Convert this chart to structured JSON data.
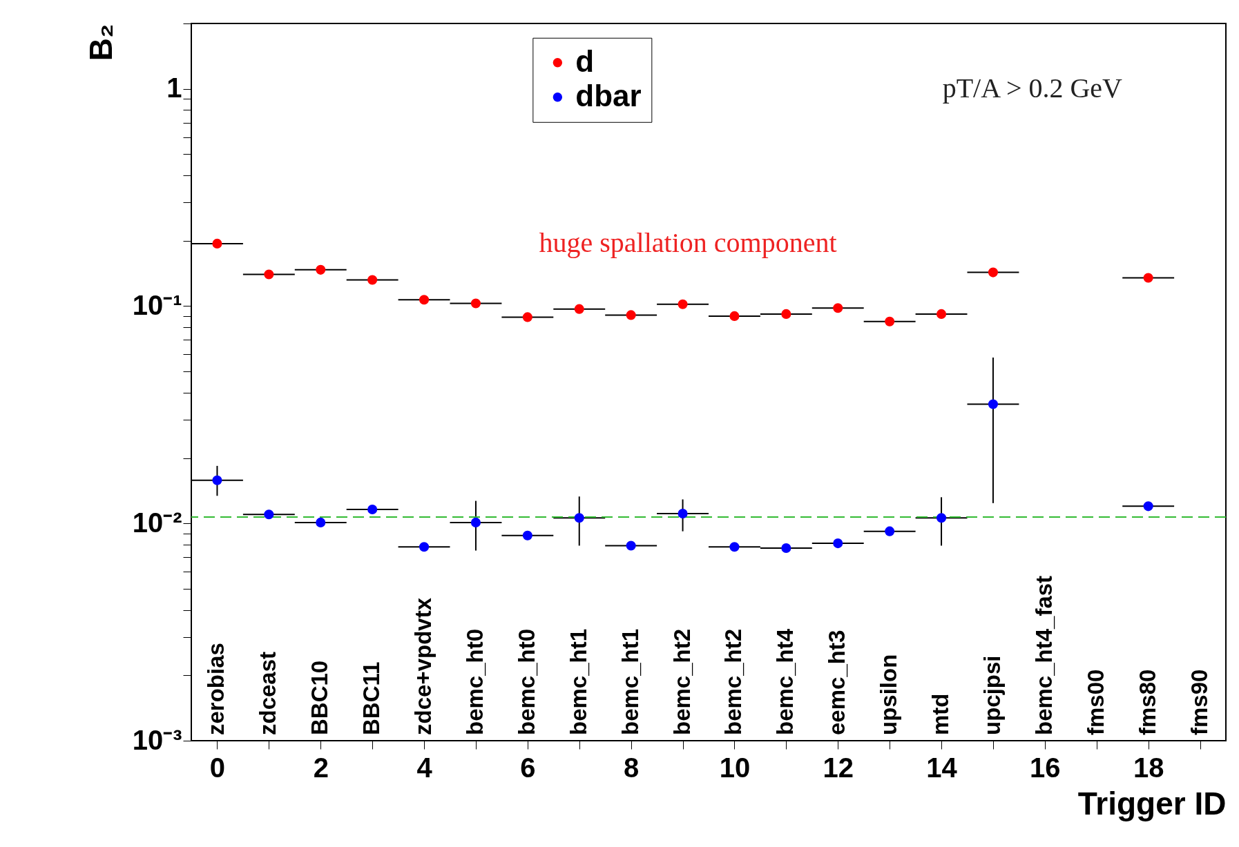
{
  "chart_data": {
    "type": "scatter",
    "xlabel": "Trigger ID",
    "ylabel": "B₂",
    "x": [
      0,
      1,
      2,
      3,
      4,
      5,
      6,
      7,
      8,
      9,
      10,
      11,
      12,
      13,
      14,
      15,
      16,
      17,
      18
    ],
    "series": [
      {
        "name": "d",
        "color": "#ff0000",
        "values": [
          0.194,
          0.14,
          0.147,
          0.132,
          0.107,
          0.103,
          0.089,
          0.097,
          0.091,
          0.102,
          0.09,
          0.092,
          0.098,
          0.085,
          0.092,
          0.143,
          null,
          null,
          0.135
        ],
        "xerrors": [
          0.5,
          0.5,
          0.5,
          0.5,
          0.5,
          0.5,
          0.5,
          0.5,
          0.5,
          0.5,
          0.5,
          0.5,
          0.5,
          0.5,
          0.5,
          0.5,
          null,
          null,
          0.5
        ]
      },
      {
        "name": "dbar",
        "color": "#0000ff",
        "values": [
          0.0158,
          0.011,
          0.0101,
          0.0116,
          0.0078,
          0.0101,
          0.0088,
          0.0106,
          0.0079,
          0.0111,
          0.0078,
          0.0077,
          0.0081,
          0.0092,
          0.0106,
          0.0354,
          null,
          null,
          0.012
        ],
        "errors": [
          [
            0.0134,
            0.0184
          ],
          null,
          null,
          null,
          null,
          [
            0.0075,
            0.0127
          ],
          null,
          [
            0.0079,
            0.0133
          ],
          null,
          [
            0.0092,
            0.0129
          ],
          null,
          null,
          null,
          null,
          [
            0.0079,
            0.0132
          ],
          [
            0.0124,
            0.058
          ],
          null,
          null,
          null
        ],
        "xerrors": [
          0.5,
          0.5,
          0.5,
          0.5,
          0.5,
          0.5,
          0.5,
          0.5,
          0.5,
          0.5,
          0.5,
          0.5,
          0.5,
          0.5,
          0.5,
          0.5,
          null,
          null,
          0.5
        ]
      }
    ],
    "log": true,
    "xlim": [
      -0.5,
      19.5
    ],
    "xticks": [
      0,
      {
        "value": 1,
        "label": null
      },
      2,
      {
        "value": 3,
        "label": null
      },
      4,
      {
        "value": 5,
        "label": null
      },
      6,
      {
        "value": 7,
        "label": null
      },
      8,
      {
        "value": 9,
        "label": null
      },
      10,
      {
        "value": 11,
        "label": null
      },
      12,
      {
        "value": 13,
        "label": null
      },
      14,
      {
        "value": 15,
        "label": null
      },
      16,
      {
        "value": 17,
        "label": null
      },
      18,
      {
        "value": 19,
        "label": null
      }
    ],
    "ylim": [
      0.001,
      2
    ],
    "yticks": [
      {
        "value": 0.001,
        "label": "10⁻³"
      },
      {
        "value": 0.002,
        "label": null
      },
      {
        "value": 0.003,
        "label": null
      },
      {
        "value": 0.004,
        "label": null
      },
      {
        "value": 0.005,
        "label": null
      },
      {
        "value": 0.006,
        "label": null
      },
      {
        "value": 0.007,
        "label": null
      },
      {
        "value": 0.008,
        "label": null
      },
      {
        "value": 0.009,
        "label": null
      },
      {
        "value": 0.01,
        "label": "10⁻²"
      },
      {
        "value": 0.02,
        "label": null
      },
      {
        "value": 0.03,
        "label": null
      },
      {
        "value": 0.04,
        "label": null
      },
      {
        "value": 0.05,
        "label": null
      },
      {
        "value": 0.06,
        "label": null
      },
      {
        "value": 0.07,
        "label": null
      },
      {
        "value": 0.08,
        "label": null
      },
      {
        "value": 0.09,
        "label": null
      },
      {
        "value": 0.1,
        "label": "10⁻¹"
      },
      {
        "value": 0.2,
        "label": null
      },
      {
        "value": 0.3,
        "label": null
      },
      {
        "value": 0.4,
        "label": null
      },
      {
        "value": 0.5,
        "label": null
      },
      {
        "value": 0.6,
        "label": null
      },
      {
        "value": 0.7,
        "label": null
      },
      {
        "value": 0.8,
        "label": null
      },
      {
        "value": 0.9,
        "label": null
      },
      1,
      {
        "value": 2,
        "label": null
      }
    ],
    "ref_lines": [
      {
        "axis": "y",
        "value": 0.0107,
        "color": "#33bb33",
        "line_style": "dashed"
      }
    ],
    "annotations": [
      "zerobias",
      "zdceast",
      "BBC10",
      "BBC11",
      "zdce+vpdvtx",
      "bemc_ht0",
      "bemc_ht0",
      "bemc_ht1",
      "bemc_ht1",
      "bemc_ht2",
      "bemc_ht2",
      "bemc_ht4",
      "eemc_ht3",
      "upsilon",
      "mtd",
      "upcjpsi",
      "bemc_ht4_fast",
      "fms00",
      "fms80",
      "fms90",
      "huge spallation component",
      "pT/A > 0.2 GeV"
    ],
    "legend": "top",
    "marker": "circle",
    "grid": false
  }
}
